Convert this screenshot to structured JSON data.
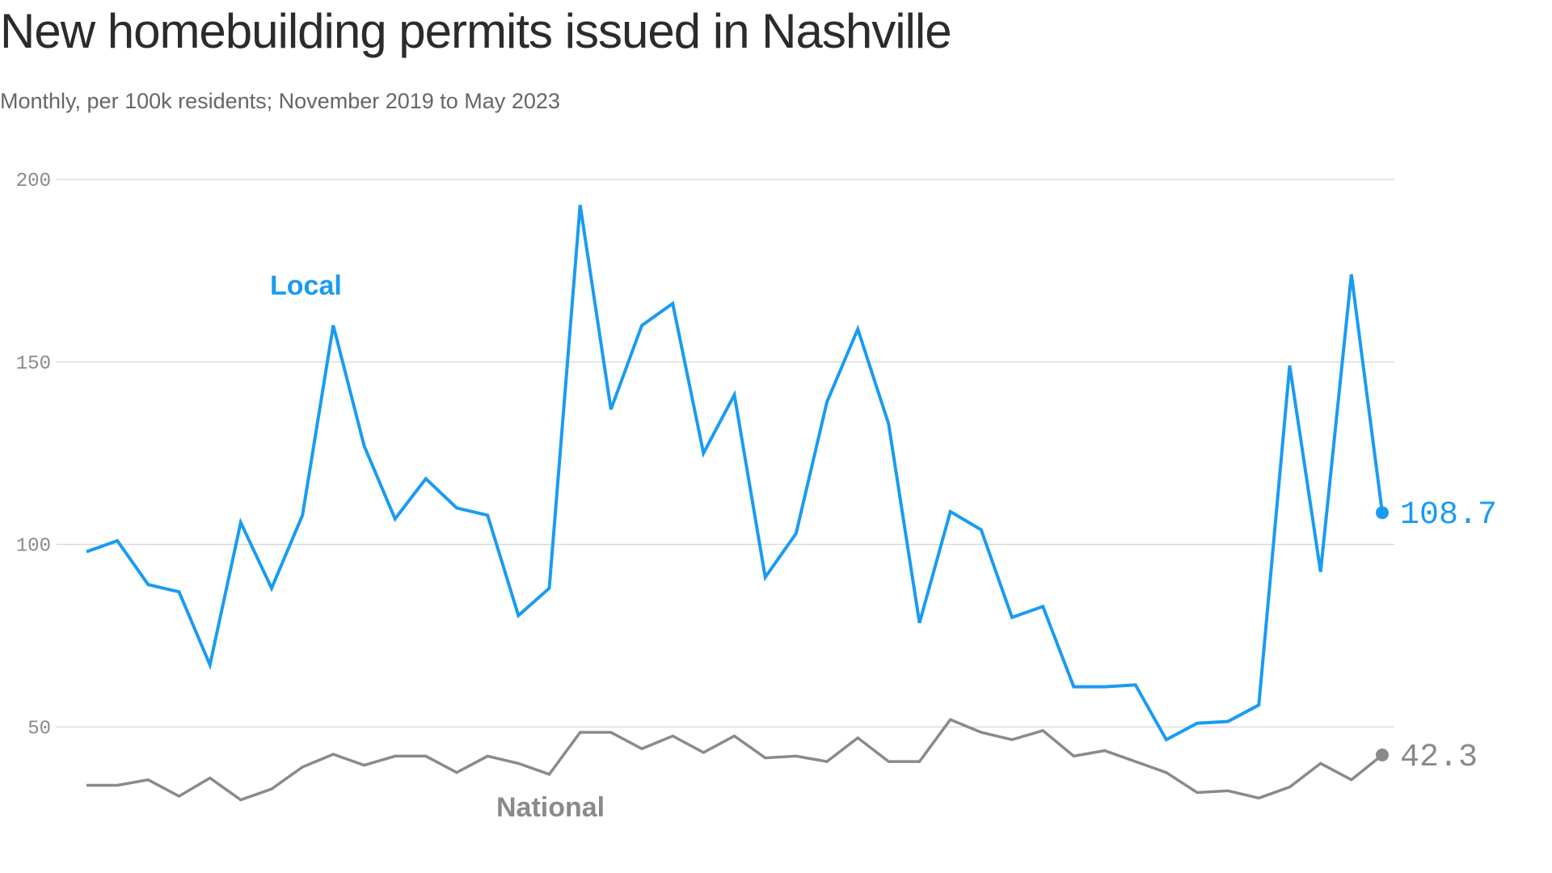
{
  "title": "New homebuilding permits issued in Nashville",
  "subtitle": "Monthly, per 100k residents; November 2019 to May 2023",
  "colors": {
    "local": "#1a9bf2",
    "national": "#8a8a8a",
    "grid": "#d6d6d6",
    "tick_text": "#8a8a8a"
  },
  "chart_data": {
    "type": "line",
    "title": "New homebuilding permits issued in Nashville",
    "subtitle": "Monthly, per 100k residents; November 2019 to May 2023",
    "xlabel": "",
    "ylabel": "",
    "ylim": [
      0,
      200
    ],
    "yticks": [
      50,
      100,
      150,
      200
    ],
    "grid": true,
    "legend": "inline labels",
    "x": [
      "2019-11",
      "2019-12",
      "2020-01",
      "2020-02",
      "2020-03",
      "2020-04",
      "2020-05",
      "2020-06",
      "2020-07",
      "2020-08",
      "2020-09",
      "2020-10",
      "2020-11",
      "2020-12",
      "2021-01",
      "2021-02",
      "2021-03",
      "2021-04",
      "2021-05",
      "2021-06",
      "2021-07",
      "2021-08",
      "2021-09",
      "2021-10",
      "2021-11",
      "2021-12",
      "2022-01",
      "2022-02",
      "2022-03",
      "2022-04",
      "2022-05",
      "2022-06",
      "2022-07",
      "2022-08",
      "2022-09",
      "2022-10",
      "2022-11",
      "2022-12",
      "2023-01",
      "2023-02",
      "2023-03",
      "2023-04",
      "2023-05"
    ],
    "series": [
      {
        "name": "Local",
        "end_label": "108.7",
        "values": [
          98.0,
          101.0,
          89.0,
          87.0,
          67.0,
          106.0,
          88.0,
          108.0,
          160.0,
          127.0,
          107.0,
          118.0,
          110.0,
          108.0,
          80.5,
          88.0,
          193.0,
          137.0,
          160.0,
          166.0,
          125.0,
          141.0,
          91.0,
          103.0,
          139.0,
          159.0,
          133.0,
          78.5,
          109.0,
          104.0,
          80.0,
          83.0,
          61.0,
          61.0,
          61.5,
          46.5,
          51.0,
          51.5,
          56.0,
          149.0,
          92.5,
          174.0,
          108.7
        ]
      },
      {
        "name": "National",
        "end_label": "42.3",
        "values": [
          34.0,
          34.0,
          35.5,
          31.0,
          36.0,
          30.0,
          33.0,
          39.0,
          42.5,
          39.5,
          42.0,
          42.0,
          37.5,
          42.0,
          40.0,
          37.0,
          48.5,
          48.5,
          44.0,
          47.5,
          43.0,
          47.5,
          41.5,
          42.0,
          40.5,
          47.0,
          40.5,
          40.5,
          52.0,
          48.5,
          46.5,
          49.0,
          42.0,
          43.5,
          40.5,
          37.5,
          32.0,
          32.5,
          30.5,
          33.5,
          40.0,
          35.5,
          42.3
        ]
      }
    ]
  }
}
